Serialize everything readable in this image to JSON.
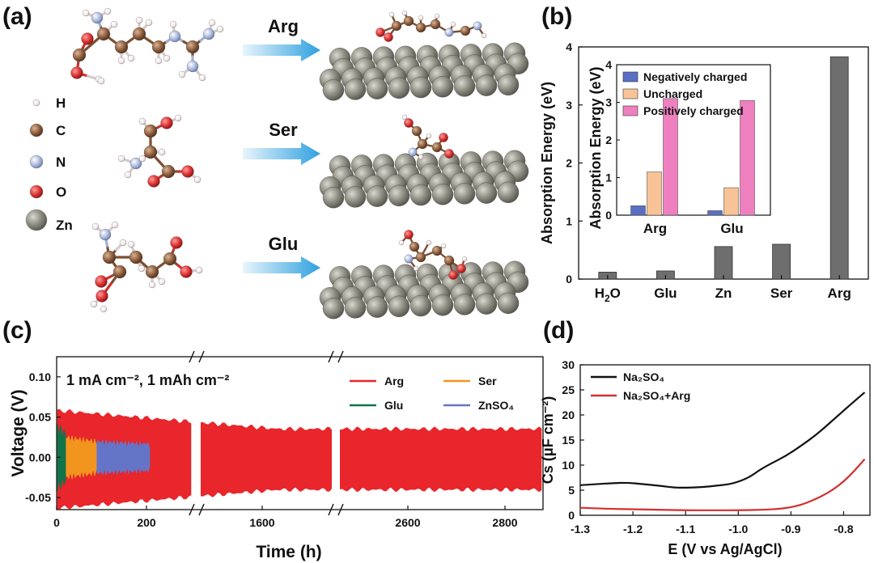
{
  "panels": {
    "a": "(a)",
    "b": "(b)",
    "c": "(c)",
    "d": "(d)"
  },
  "panel_a": {
    "legend": [
      {
        "symbol": "H",
        "color": "#f4eeee",
        "size": "small"
      },
      {
        "symbol": "C",
        "color": "#8a5a3a",
        "size": "medium"
      },
      {
        "symbol": "N",
        "color": "#a9b9dd",
        "size": "medium"
      },
      {
        "symbol": "O",
        "color": "#d83030",
        "size": "medium"
      },
      {
        "symbol": "Zn",
        "color": "#8d8c82",
        "size": "large"
      }
    ],
    "arrows": [
      "Arg",
      "Ser",
      "Glu"
    ],
    "arrow_color": "#2fa0e0"
  },
  "chart_data": [
    {
      "id": "b",
      "type": "bar",
      "categories": [
        "H2O",
        "Glu",
        "Zn",
        "Ser",
        "Arg"
      ],
      "values": [
        0.12,
        0.14,
        0.56,
        0.6,
        3.83
      ],
      "ylabel": "Absorption Energy (eV)",
      "ylim": [
        0,
        4
      ],
      "yticks": [
        0,
        1,
        2,
        3,
        4
      ],
      "bar_color": "#6e6e6e",
      "inset": {
        "type": "bar",
        "categories": [
          "Arg",
          "Glu"
        ],
        "ylabel": "Absorption Energy (eV)",
        "ylim": [
          0,
          4
        ],
        "yticks": [
          0,
          1,
          2,
          3,
          4
        ],
        "series": [
          {
            "name": "Negatively charged",
            "color": "#5a6fc4",
            "values": [
              0.25,
              0.12
            ]
          },
          {
            "name": "Uncharged",
            "color": "#f8c396",
            "values": [
              1.15,
              0.73
            ]
          },
          {
            "name": "Positively charged",
            "color": "#ee80c0",
            "values": [
              3.1,
              3.05
            ]
          }
        ]
      }
    },
    {
      "id": "c",
      "type": "line",
      "annotation": "1 mA cm⁻², 1 mAh cm⁻²",
      "xlabel": "Time (h)",
      "ylabel": "Voltage (V)",
      "ylim": [
        -0.065,
        0.125
      ],
      "yticks": [
        "0.10",
        "0.05",
        "0.00",
        "-0.05"
      ],
      "xticks": [
        "0",
        "200",
        "1600",
        "2600",
        "2800"
      ],
      "axis_breaks": 2,
      "series": [
        {
          "name": "Arg",
          "color": "#e8262b",
          "envelope": {
            "start_amp": 0.06,
            "end_amp": 0.037,
            "center": -0.005
          }
        },
        {
          "name": "Ser",
          "color": "#f2951e",
          "envelope": {
            "x_end": 90,
            "amp": 0.03
          }
        },
        {
          "name": "Glu",
          "color": "#11734a",
          "envelope": {
            "x_end": 20,
            "amp": 0.045
          }
        },
        {
          "name": "ZnSO₄",
          "color": "#6475c8",
          "envelope": {
            "x_end": 210,
            "amp": 0.025
          }
        }
      ]
    },
    {
      "id": "d",
      "type": "line",
      "xlabel": "E (V vs Ag/AgCl)",
      "ylabel": "Cs (μF cm⁻²)",
      "xlim": [
        -1.3,
        -0.75
      ],
      "ylim": [
        0,
        30
      ],
      "xticks": [
        -1.3,
        -1.2,
        -1.1,
        -1.0,
        -0.9,
        -0.8
      ],
      "xtick_labels": [
        "-1.3",
        "-1.2",
        "-1.1",
        "-1.0",
        "-0.9",
        "-0.8"
      ],
      "yticks": [
        0,
        5,
        10,
        15,
        20,
        25,
        30
      ],
      "series": [
        {
          "name": "Na₂SO₄",
          "color": "#111111",
          "x": [
            -1.3,
            -1.27,
            -1.24,
            -1.21,
            -1.18,
            -1.15,
            -1.12,
            -1.1,
            -1.07,
            -1.04,
            -1.01,
            -0.98,
            -0.96,
            -0.94,
            -0.91,
            -0.88,
            -0.85,
            -0.82,
            -0.79,
            -0.76
          ],
          "y": [
            6.0,
            6.2,
            6.4,
            6.5,
            6.2,
            5.9,
            5.5,
            5.5,
            5.6,
            5.9,
            6.3,
            7.5,
            9.0,
            10.2,
            11.8,
            13.9,
            16.2,
            19.0,
            21.8,
            24.5
          ]
        },
        {
          "name": "Na₂SO₄+Arg",
          "color": "#d42e2e",
          "x": [
            -1.3,
            -1.25,
            -1.2,
            -1.15,
            -1.1,
            -1.05,
            -1.0,
            -0.95,
            -0.92,
            -0.9,
            -0.88,
            -0.86,
            -0.84,
            -0.82,
            -0.8,
            -0.78,
            -0.76
          ],
          "y": [
            1.5,
            1.3,
            1.2,
            1.1,
            1.0,
            1.0,
            1.0,
            1.1,
            1.3,
            1.6,
            2.1,
            2.9,
            3.9,
            5.1,
            6.7,
            8.8,
            11.2
          ]
        }
      ]
    }
  ]
}
